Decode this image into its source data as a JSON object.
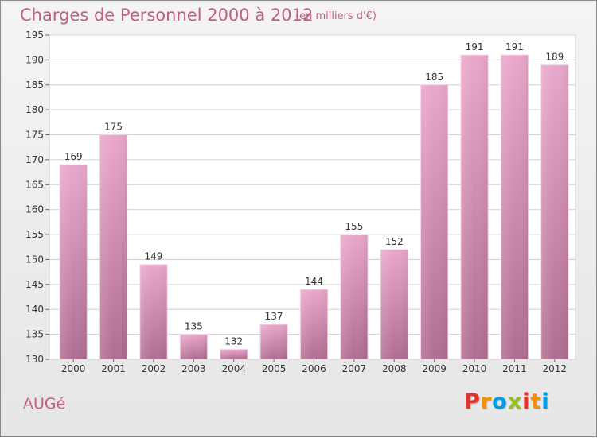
{
  "header": {
    "title": "Charges de Personnel 2000 à 2012",
    "subtitle": "(en milliers d'€)"
  },
  "footer": {
    "commune": "AUGé",
    "brand": {
      "letters": [
        "P",
        "r",
        "o",
        "x",
        "i",
        "t",
        "i"
      ],
      "colors": [
        "#e6332a",
        "#f39200",
        "#009fe3",
        "#95c11f",
        "#e6332a",
        "#f39200",
        "#009fe3"
      ]
    }
  },
  "colors": {
    "bar": "#d68fb5",
    "accent": "#c0607e"
  },
  "chart_data": {
    "type": "bar",
    "title": "Charges de Personnel 2000 à 2012",
    "subtitle": "(en milliers d'€)",
    "categories": [
      "2000",
      "2001",
      "2002",
      "2003",
      "2004",
      "2005",
      "2006",
      "2007",
      "2008",
      "2009",
      "2010",
      "2011",
      "2012"
    ],
    "values": [
      169,
      175,
      149,
      135,
      132,
      137,
      144,
      155,
      152,
      185,
      191,
      191,
      189
    ],
    "ylim": [
      130,
      195
    ],
    "yticks": [
      130,
      135,
      140,
      145,
      150,
      155,
      160,
      165,
      170,
      175,
      180,
      185,
      190,
      195
    ],
    "grid": true,
    "xlabel": "",
    "ylabel": ""
  }
}
